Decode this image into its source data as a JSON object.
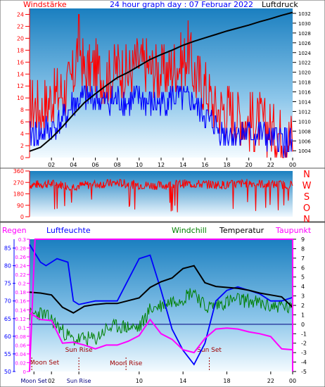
{
  "chart_data": [
    {
      "type": "line",
      "title": "24 hour graph day : 07 Februar 2022",
      "left_label": "Windstärke",
      "right_label": "Luftdruck",
      "x_ticks": [
        "02",
        "04",
        "06",
        "08",
        "10",
        "12",
        "14",
        "16",
        "18",
        "20",
        "22",
        "00"
      ],
      "y_left_ticks": [
        0,
        2,
        4,
        6,
        8,
        10,
        12,
        14,
        16,
        18,
        20,
        22,
        24
      ],
      "y_left_range": [
        0,
        25
      ],
      "y_right_ticks": [
        1004,
        1006,
        1008,
        1010,
        1012,
        1014,
        1016,
        1018,
        1020,
        1022,
        1024,
        1026,
        1028,
        1030,
        1032
      ],
      "y_right_range": [
        1002.6,
        1033
      ],
      "series": [
        {
          "name": "Windstärke",
          "color": "#ff0000",
          "x": [
            0,
            1,
            2,
            3,
            4,
            4.5,
            5,
            6,
            7,
            8,
            9,
            10,
            11,
            12,
            13,
            14,
            14.5,
            15,
            16,
            17,
            18,
            19,
            20,
            21,
            22,
            23,
            24
          ],
          "y": [
            9,
            8,
            10,
            11,
            13,
            20,
            14,
            15,
            13,
            15,
            14,
            16,
            15,
            14,
            15,
            16,
            18,
            14,
            12,
            8,
            8,
            7,
            6,
            6,
            5,
            4,
            3
          ]
        },
        {
          "name": "Windböen",
          "color": "#0000ff",
          "x": [
            0,
            1,
            2,
            3,
            4,
            5,
            6,
            7,
            8,
            9,
            10,
            11,
            12,
            13,
            14,
            15,
            16,
            17,
            18,
            19,
            20,
            21,
            22,
            23,
            24
          ],
          "y": [
            4,
            4,
            5,
            6,
            9,
            10,
            10,
            9,
            10,
            9,
            10,
            9,
            9,
            10,
            10,
            9,
            7,
            5,
            4,
            4,
            4,
            4,
            3,
            3,
            2
          ]
        },
        {
          "name": "Luftdruck",
          "color": "#000000",
          "x": [
            0,
            1,
            2,
            3,
            4,
            5,
            6,
            7,
            8,
            9,
            10,
            11,
            12,
            13,
            14,
            15,
            16,
            17,
            18,
            19,
            20,
            21,
            22,
            23,
            24
          ],
          "y": [
            1003.9,
            1004.7,
            1006.6,
            1008.9,
            1011.4,
            1013.8,
            1015.6,
            1017.3,
            1018.9,
            1020.0,
            1021.3,
            1022.6,
            1023.6,
            1024.5,
            1025.5,
            1026.3,
            1027.0,
            1027.7,
            1028.4,
            1029.0,
            1029.6,
            1030.3,
            1030.9,
            1031.6,
            1032.2
          ]
        }
      ]
    },
    {
      "type": "scatter",
      "left_label": "",
      "y_left_ticks": [
        0,
        90,
        180,
        270,
        360
      ],
      "y_left_range": [
        0,
        360
      ],
      "right_letters": [
        "N",
        "W",
        "S",
        "O",
        "N"
      ],
      "series": [
        {
          "name": "Windrichtung",
          "color": "#ff0000",
          "x": [
            0,
            2,
            4,
            6,
            8,
            10,
            12,
            14,
            16,
            18,
            20,
            22,
            24
          ],
          "y": [
            250,
            260,
            240,
            255,
            265,
            250,
            245,
            260,
            255,
            250,
            265,
            255,
            250
          ]
        }
      ]
    },
    {
      "type": "line",
      "labels": {
        "regen": "Regen",
        "luftfeuchte": "Luftfeuchte",
        "windchill": "Windchill",
        "temperatur": "Temperatur",
        "taupunkt": "Taupunkt"
      },
      "x_ticks": [
        "Moon Set",
        "02",
        "Sun Rise",
        "10",
        "14",
        "18",
        "22",
        "00"
      ],
      "y_rain_ticks": [
        0,
        0.02,
        0.04,
        0.06,
        0.08,
        0.1,
        0.12,
        0.14,
        0.16,
        0.18,
        0.2,
        0.22,
        0.24,
        0.26,
        0.28,
        0.3
      ],
      "y_rain_range": [
        0,
        0.3
      ],
      "y_humidity_ticks": [
        50,
        55,
        60,
        65,
        70,
        75,
        80,
        85
      ],
      "y_humidity_range": [
        50,
        87.5
      ],
      "y_temp_ticks": [
        -5,
        -4,
        -3,
        -2,
        -1,
        0,
        1,
        2,
        3,
        4,
        5,
        6,
        7,
        8,
        9
      ],
      "y_temp_range": [
        -5,
        9
      ],
      "events": [
        "Moon Set",
        "Sun Rise",
        "Moon Rise",
        "Sun Set"
      ],
      "series": [
        {
          "name": "Luftfeuchte",
          "color": "#0000ff",
          "x": [
            0,
            1,
            1.5,
            2.5,
            3.5,
            4,
            4.5,
            6,
            8,
            10,
            11,
            12,
            13,
            14,
            15,
            16,
            17,
            18,
            19,
            20,
            21,
            22,
            23,
            24
          ],
          "y": [
            86,
            81,
            80,
            82,
            81,
            70,
            69,
            70,
            70,
            82,
            83,
            73,
            62,
            56,
            52,
            58,
            70,
            73,
            74,
            73,
            72,
            70,
            70,
            71
          ]
        },
        {
          "name": "Temperatur",
          "color": "#000000",
          "x": [
            0,
            1,
            2,
            3,
            4,
            5,
            6,
            7,
            8,
            9,
            10,
            11,
            12,
            13,
            14,
            15,
            16,
            17,
            18,
            19,
            20,
            21,
            22,
            23,
            24
          ],
          "y": [
            3.4,
            3.3,
            3.1,
            1.8,
            1.2,
            1.9,
            2.1,
            2.2,
            2.2,
            2.5,
            2.8,
            3.9,
            4.5,
            4.9,
            5.9,
            6.2,
            4.4,
            4.0,
            3.9,
            3.8,
            3.6,
            3.3,
            3.1,
            2.9,
            1.8
          ]
        },
        {
          "name": "Windchill",
          "color": "#008000",
          "x": [
            0,
            1,
            2,
            3,
            4,
            5,
            6,
            7,
            8,
            9,
            10,
            11,
            12,
            13,
            14,
            15,
            16,
            17,
            18,
            19,
            20,
            21,
            22,
            23,
            24
          ],
          "y": [
            1.0,
            1.2,
            0.5,
            -0.7,
            -1.7,
            -1.5,
            -1.6,
            -0.5,
            -0.2,
            -0.3,
            -0.4,
            1.6,
            2.0,
            2.5,
            2.8,
            3.6,
            1.8,
            2.0,
            2.4,
            2.6,
            2.5,
            2.2,
            1.9,
            2.0,
            1.5
          ]
        },
        {
          "name": "Taupunkt",
          "color": "#ff00ff",
          "x": [
            0,
            1,
            2,
            3,
            4,
            5,
            6,
            7,
            8,
            9,
            10,
            11,
            12,
            13,
            14,
            15,
            16,
            17,
            18,
            19,
            20,
            21,
            22,
            23,
            24
          ],
          "y": [
            1.2,
            0.5,
            0.4,
            -2.0,
            -1.9,
            -2.2,
            -2.6,
            -2.2,
            -2.2,
            -1.8,
            -1.2,
            0.5,
            -1.0,
            -1.6,
            -2.7,
            -3.0,
            -1.5,
            -0.5,
            -0.4,
            -0.5,
            -0.8,
            -1.0,
            -1.3,
            -2.6,
            -2.7
          ]
        },
        {
          "name": "Regen",
          "color": "#ff00ff",
          "x": [
            0,
            0.5,
            24
          ],
          "y": [
            0,
            0.3,
            0.3
          ]
        }
      ]
    }
  ]
}
